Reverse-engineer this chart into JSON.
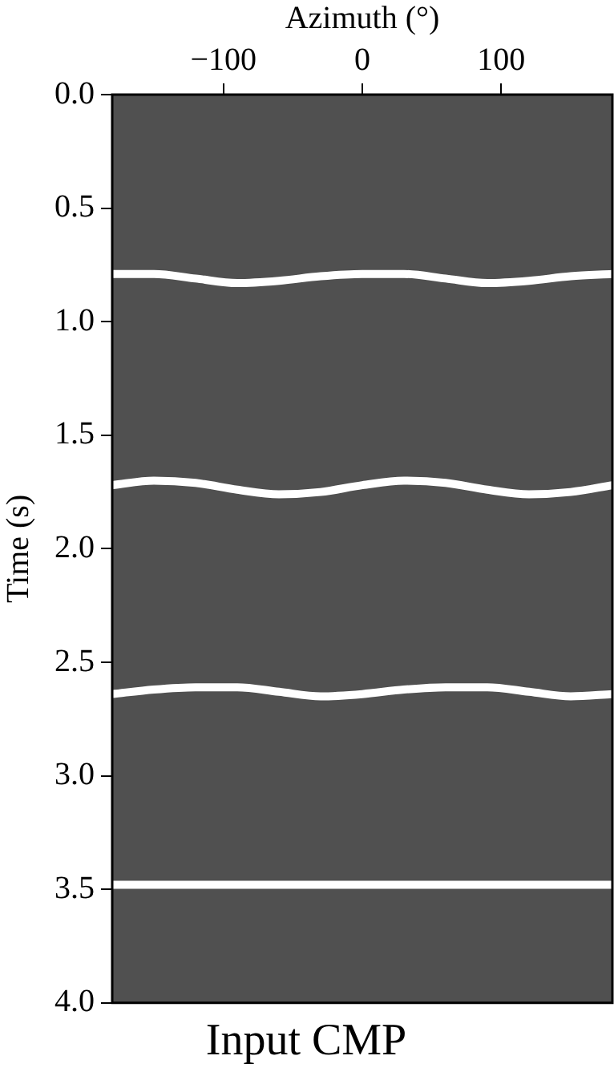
{
  "chart_data": {
    "type": "line",
    "title": "Input CMP",
    "xlabel": "Azimuth (°)",
    "ylabel": "Time (s)",
    "x": [
      -180,
      -150,
      -120,
      -90,
      -60,
      -30,
      0,
      30,
      60,
      90,
      120,
      150,
      180
    ],
    "series": [
      {
        "color": "#ffffff",
        "values": [
          0.79,
          0.79,
          0.81,
          0.83,
          0.82,
          0.8,
          0.79,
          0.79,
          0.81,
          0.83,
          0.82,
          0.8,
          0.79
        ]
      },
      {
        "color": "#ffffff",
        "values": [
          1.72,
          1.7,
          1.71,
          1.74,
          1.76,
          1.75,
          1.72,
          1.7,
          1.71,
          1.74,
          1.76,
          1.75,
          1.72
        ]
      },
      {
        "color": "#ffffff",
        "values": [
          2.64,
          2.62,
          2.61,
          2.61,
          2.63,
          2.65,
          2.64,
          2.62,
          2.61,
          2.61,
          2.63,
          2.65,
          2.64
        ]
      },
      {
        "color": "#ffffff",
        "values": [
          3.48,
          3.48,
          3.48,
          3.48,
          3.48,
          3.48,
          3.48,
          3.48,
          3.48,
          3.48,
          3.48,
          3.48,
          3.48
        ]
      }
    ],
    "xlim": [
      -180,
      180
    ],
    "xticks": [
      {
        "value": -100,
        "label": "−100"
      },
      0,
      100
    ],
    "ylim": [
      4,
      0
    ],
    "yticks": [
      {
        "value": 0,
        "label": "0.0"
      },
      {
        "value": 0.5,
        "label": "0.5"
      },
      {
        "value": 1,
        "label": "1.0"
      },
      {
        "value": 1.5,
        "label": "1.5"
      },
      {
        "value": 2,
        "label": "2.0"
      },
      {
        "value": 2.5,
        "label": "2.5"
      },
      {
        "value": 3,
        "label": "3.0"
      },
      {
        "value": 3.5,
        "label": "3.5"
      },
      {
        "value": 4,
        "label": "4.0"
      }
    ],
    "grid": false,
    "legend": false,
    "marker": "none",
    "line_style": "solid"
  }
}
